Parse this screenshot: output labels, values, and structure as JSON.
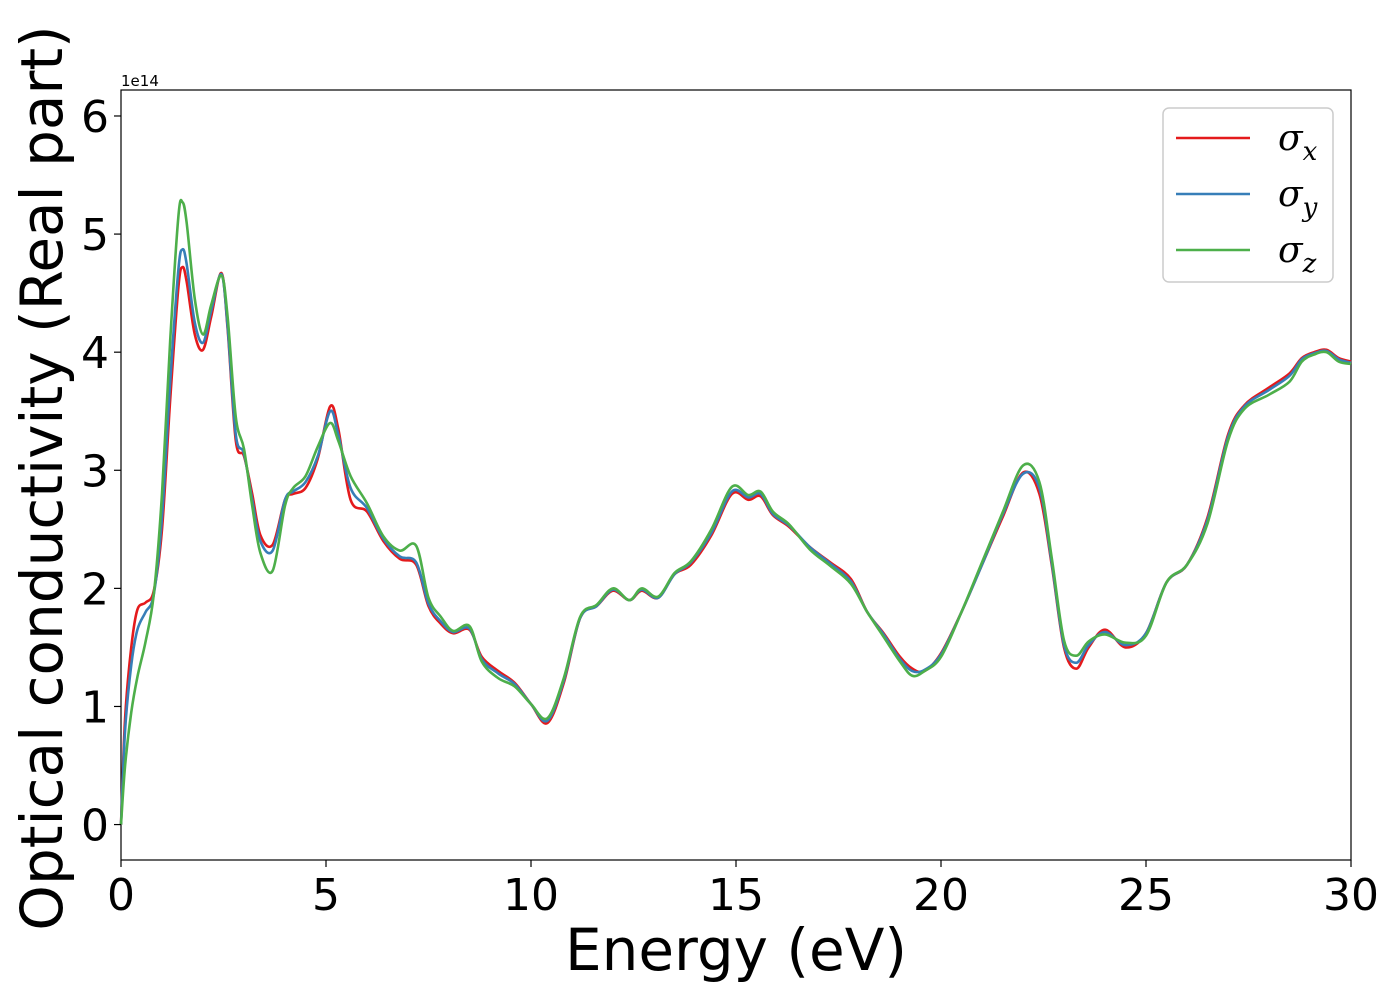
{
  "chart_data": {
    "type": "line",
    "title": "",
    "xlabel": "Energy (eV)",
    "ylabel": "Optical conductivity (Real part)",
    "y_offset_label": "1e14",
    "xlim": [
      0,
      30
    ],
    "ylim": [
      -0.3,
      6.22
    ],
    "xticks": [
      0,
      5,
      10,
      15,
      20,
      25,
      30
    ],
    "yticks": [
      0,
      1,
      2,
      3,
      4,
      5,
      6
    ],
    "xtick_labels": [
      "0",
      "5",
      "10",
      "15",
      "20",
      "25",
      "30"
    ],
    "ytick_labels": [
      "0",
      "1",
      "2",
      "3",
      "4",
      "5",
      "6"
    ],
    "grid": false,
    "legend_position": "top-right",
    "series": [
      {
        "name": "σx",
        "legend_base": "σ",
        "legend_sub": "x",
        "color": "#e41a1c",
        "x": [
          0,
          0.1,
          0.25,
          0.4,
          0.6,
          0.8,
          1.0,
          1.2,
          1.4,
          1.5,
          1.6,
          1.8,
          2.0,
          2.2,
          2.45,
          2.6,
          2.8,
          3.0,
          3.2,
          3.4,
          3.7,
          4.0,
          4.2,
          4.5,
          4.8,
          5.1,
          5.3,
          5.6,
          6.0,
          6.4,
          6.8,
          7.2,
          7.5,
          7.8,
          8.1,
          8.5,
          8.8,
          9.2,
          9.6,
          10.0,
          10.4,
          10.8,
          11.2,
          11.6,
          12.0,
          12.4,
          12.7,
          13.1,
          13.5,
          13.9,
          14.4,
          14.9,
          15.3,
          15.6,
          15.9,
          16.3,
          16.8,
          17.3,
          17.8,
          18.2,
          18.6,
          19.0,
          19.3,
          19.6,
          20.0,
          20.5,
          21.0,
          21.5,
          22.0,
          22.4,
          22.7,
          23.0,
          23.3,
          23.6,
          24.0,
          24.5,
          25.0,
          25.5,
          26.0,
          26.5,
          27.0,
          27.4,
          28.0,
          28.5,
          28.8,
          29.1,
          29.4,
          29.7,
          30.0
        ],
        "y": [
          0,
          0.9,
          1.5,
          1.82,
          1.88,
          1.98,
          2.5,
          3.6,
          4.55,
          4.72,
          4.6,
          4.15,
          4.02,
          4.3,
          4.67,
          4.2,
          3.25,
          3.12,
          2.8,
          2.45,
          2.37,
          2.75,
          2.8,
          2.85,
          3.1,
          3.54,
          3.35,
          2.75,
          2.65,
          2.4,
          2.25,
          2.2,
          1.85,
          1.7,
          1.62,
          1.65,
          1.42,
          1.3,
          1.2,
          1.02,
          0.86,
          1.2,
          1.75,
          1.85,
          1.98,
          1.9,
          1.98,
          1.92,
          2.12,
          2.2,
          2.45,
          2.8,
          2.75,
          2.78,
          2.62,
          2.52,
          2.35,
          2.22,
          2.08,
          1.8,
          1.62,
          1.42,
          1.32,
          1.3,
          1.45,
          1.8,
          2.2,
          2.6,
          2.98,
          2.8,
          2.2,
          1.5,
          1.32,
          1.5,
          1.65,
          1.5,
          1.62,
          2.05,
          2.2,
          2.6,
          3.3,
          3.55,
          3.7,
          3.82,
          3.95,
          4.0,
          4.02,
          3.95,
          3.92
        ]
      },
      {
        "name": "σy",
        "legend_base": "σ",
        "legend_sub": "y",
        "color": "#377eb8",
        "x": [
          0,
          0.1,
          0.25,
          0.4,
          0.6,
          0.8,
          1.0,
          1.2,
          1.4,
          1.5,
          1.6,
          1.8,
          2.0,
          2.2,
          2.45,
          2.6,
          2.8,
          3.0,
          3.2,
          3.4,
          3.7,
          4.0,
          4.2,
          4.5,
          4.8,
          5.1,
          5.3,
          5.6,
          6.0,
          6.4,
          6.8,
          7.2,
          7.5,
          7.8,
          8.1,
          8.5,
          8.8,
          9.2,
          9.6,
          10.0,
          10.4,
          10.8,
          11.2,
          11.6,
          12.0,
          12.4,
          12.7,
          13.1,
          13.5,
          13.9,
          14.4,
          14.9,
          15.3,
          15.6,
          15.9,
          16.3,
          16.8,
          17.3,
          17.8,
          18.2,
          18.6,
          19.0,
          19.3,
          19.6,
          20.0,
          20.5,
          21.0,
          21.5,
          22.0,
          22.4,
          22.7,
          23.0,
          23.3,
          23.6,
          24.0,
          24.5,
          25.0,
          25.5,
          26.0,
          26.5,
          27.0,
          27.4,
          28.0,
          28.5,
          28.8,
          29.1,
          29.4,
          29.7,
          30.0
        ],
        "y": [
          0,
          0.8,
          1.35,
          1.65,
          1.8,
          1.95,
          2.6,
          3.75,
          4.7,
          4.87,
          4.75,
          4.25,
          4.08,
          4.35,
          4.66,
          4.22,
          3.3,
          3.14,
          2.75,
          2.4,
          2.32,
          2.75,
          2.82,
          2.9,
          3.12,
          3.5,
          3.3,
          2.85,
          2.68,
          2.42,
          2.27,
          2.22,
          1.87,
          1.72,
          1.63,
          1.66,
          1.4,
          1.28,
          1.19,
          1.02,
          0.88,
          1.22,
          1.75,
          1.85,
          1.99,
          1.9,
          1.99,
          1.92,
          2.12,
          2.22,
          2.47,
          2.82,
          2.77,
          2.8,
          2.63,
          2.53,
          2.35,
          2.21,
          2.06,
          1.8,
          1.61,
          1.4,
          1.3,
          1.31,
          1.44,
          1.8,
          2.2,
          2.62,
          2.97,
          2.85,
          2.22,
          1.52,
          1.37,
          1.52,
          1.63,
          1.52,
          1.62,
          2.05,
          2.2,
          2.58,
          3.28,
          3.54,
          3.68,
          3.8,
          3.94,
          3.99,
          4.01,
          3.94,
          3.91
        ]
      },
      {
        "name": "σz",
        "legend_base": "σ",
        "legend_sub": "z",
        "color": "#4daf4a",
        "x": [
          0,
          0.1,
          0.25,
          0.4,
          0.6,
          0.8,
          1.0,
          1.2,
          1.4,
          1.5,
          1.6,
          1.8,
          2.0,
          2.2,
          2.45,
          2.6,
          2.8,
          3.0,
          3.2,
          3.4,
          3.7,
          4.0,
          4.2,
          4.5,
          4.8,
          5.1,
          5.3,
          5.6,
          6.0,
          6.4,
          6.8,
          7.2,
          7.5,
          7.8,
          8.1,
          8.5,
          8.8,
          9.2,
          9.6,
          10.0,
          10.4,
          10.8,
          11.2,
          11.6,
          12.0,
          12.4,
          12.7,
          13.1,
          13.5,
          13.9,
          14.4,
          14.9,
          15.3,
          15.6,
          15.9,
          16.3,
          16.8,
          17.3,
          17.8,
          18.2,
          18.6,
          19.0,
          19.3,
          19.6,
          20.0,
          20.5,
          21.0,
          21.5,
          22.0,
          22.4,
          22.7,
          23.0,
          23.3,
          23.6,
          24.0,
          24.5,
          25.0,
          25.5,
          26.0,
          26.5,
          27.0,
          27.4,
          28.0,
          28.5,
          28.8,
          29.1,
          29.4,
          29.7,
          30.0
        ],
        "y": [
          0,
          0.5,
          0.95,
          1.25,
          1.55,
          1.95,
          2.8,
          4.1,
          5.15,
          5.27,
          5.1,
          4.45,
          4.15,
          4.4,
          4.65,
          4.3,
          3.45,
          3.18,
          2.7,
          2.3,
          2.15,
          2.7,
          2.85,
          2.95,
          3.2,
          3.4,
          3.25,
          2.95,
          2.72,
          2.44,
          2.32,
          2.36,
          1.92,
          1.76,
          1.64,
          1.68,
          1.38,
          1.24,
          1.17,
          1.02,
          0.9,
          1.24,
          1.76,
          1.86,
          2.0,
          1.9,
          2.0,
          1.93,
          2.13,
          2.23,
          2.5,
          2.86,
          2.79,
          2.82,
          2.65,
          2.54,
          2.33,
          2.19,
          2.04,
          1.8,
          1.59,
          1.38,
          1.26,
          1.3,
          1.42,
          1.8,
          2.22,
          2.64,
          3.04,
          2.9,
          2.26,
          1.56,
          1.43,
          1.55,
          1.61,
          1.54,
          1.6,
          2.05,
          2.2,
          2.55,
          3.25,
          3.52,
          3.64,
          3.75,
          3.92,
          3.98,
          4.0,
          3.92,
          3.9
        ]
      }
    ]
  }
}
